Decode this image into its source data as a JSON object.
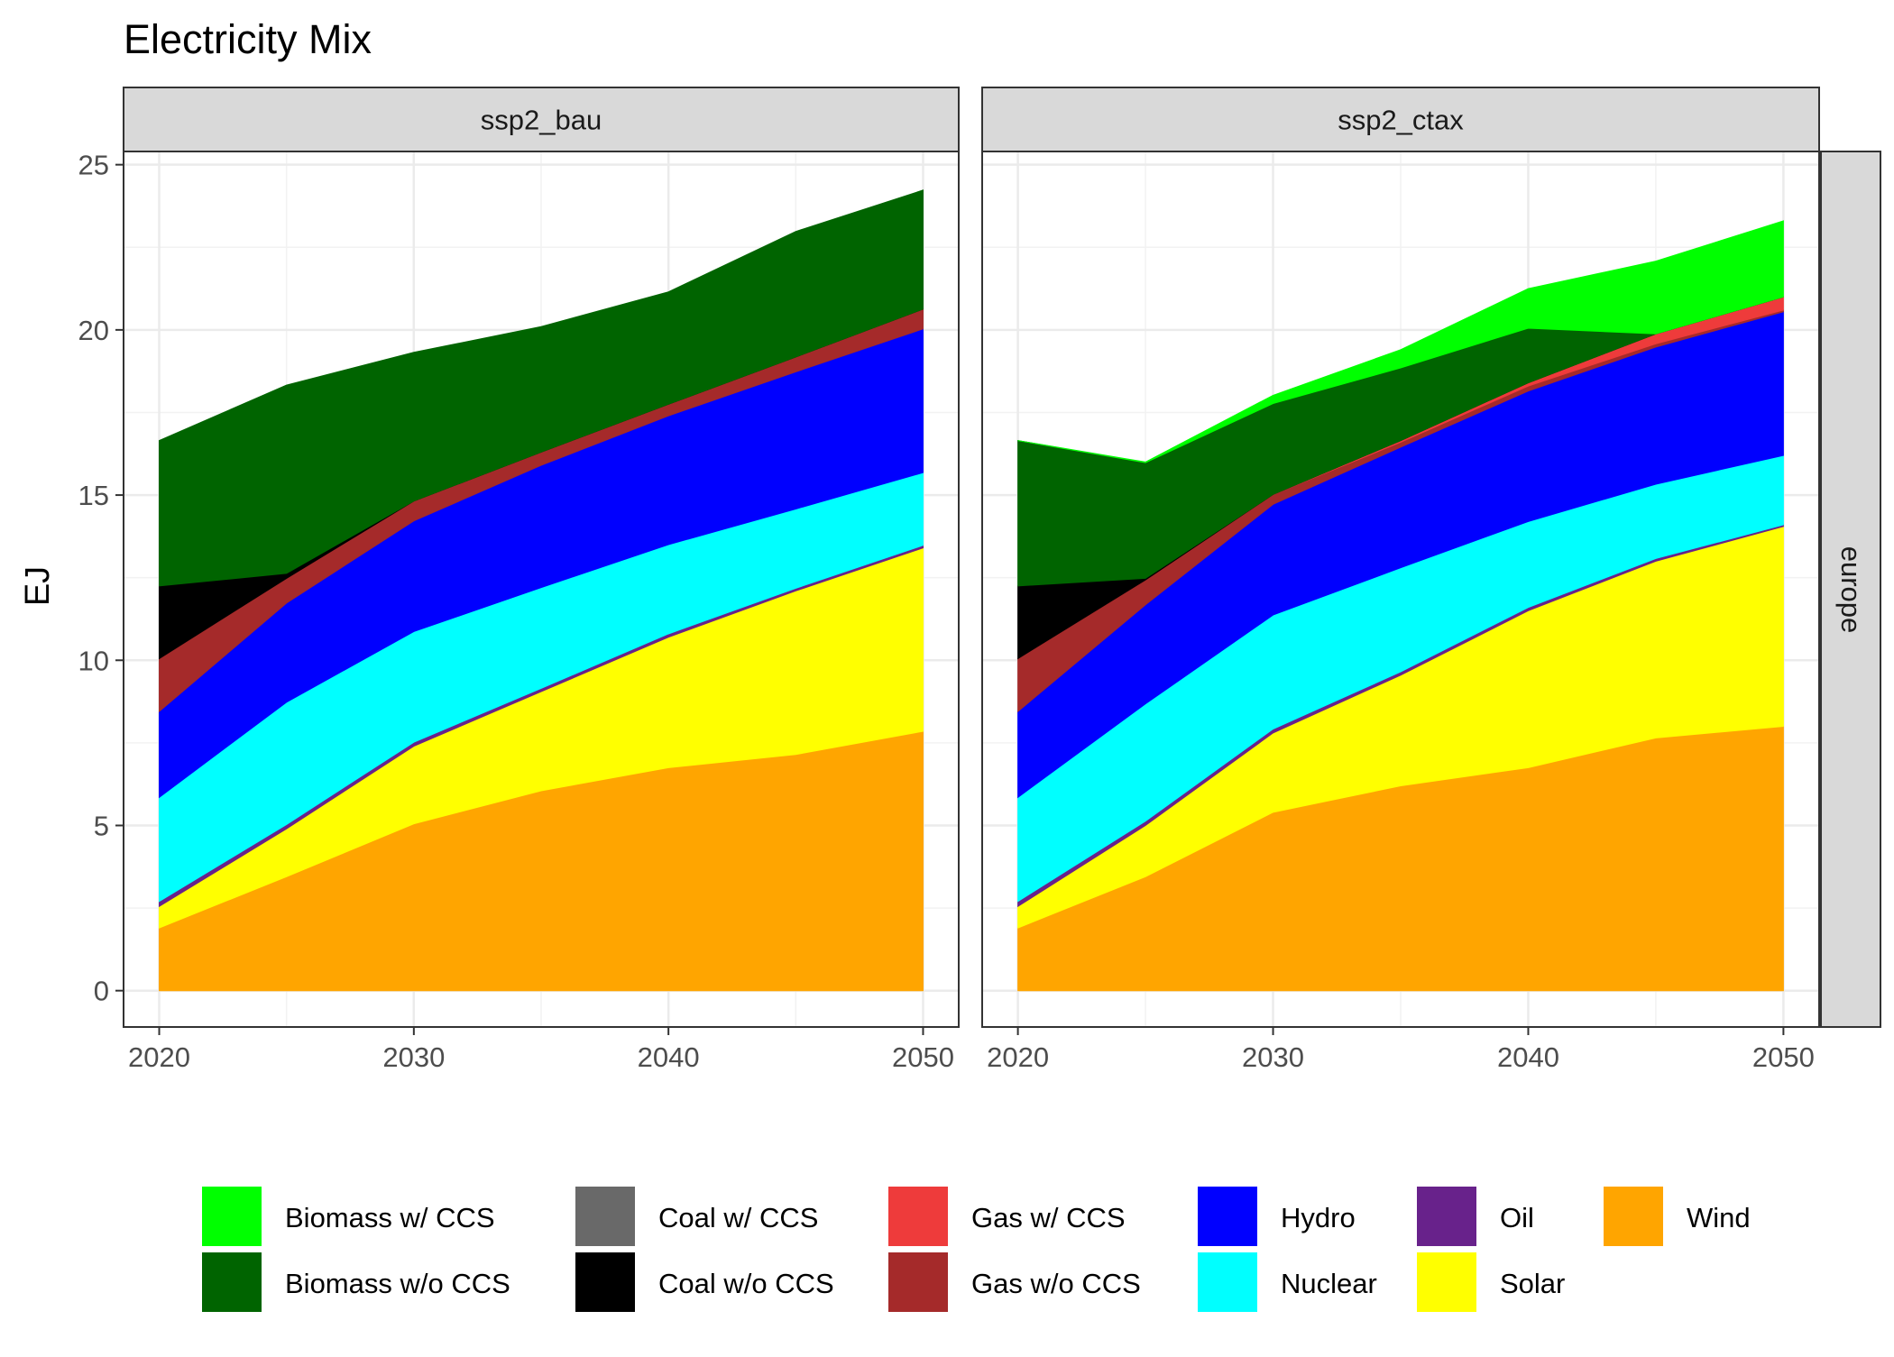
{
  "title": "Electricity Mix",
  "chart_data": {
    "type": "area",
    "stacked": true,
    "title": "Electricity Mix",
    "ylabel": "EJ",
    "xlabel": "",
    "ylim": [
      -1.1,
      25.4
    ],
    "xlim": [
      2018.6,
      2051.4
    ],
    "yticks": [
      0,
      5,
      10,
      15,
      20,
      25
    ],
    "xticks": [
      2020,
      2030,
      2040,
      2050
    ],
    "grid": true,
    "row_strip": "europe",
    "legend_position": "bottom",
    "x": [
      2020,
      2025,
      2030,
      2035,
      2040,
      2045,
      2050
    ],
    "stack_order_bottom_to_top": [
      "Wind",
      "Solar",
      "Oil",
      "Nuclear",
      "Hydro",
      "Gas w/o CCS",
      "Gas w/ CCS",
      "Coal w/o CCS",
      "Coal w/ CCS",
      "Biomass w/o CCS",
      "Biomass w/ CCS"
    ],
    "legend": [
      {
        "name": "Biomass w/ CCS",
        "color": "#00FF00"
      },
      {
        "name": "Biomass w/o CCS",
        "color": "#006400"
      },
      {
        "name": "Coal w/ CCS",
        "color": "#696969"
      },
      {
        "name": "Coal w/o CCS",
        "color": "#000000"
      },
      {
        "name": "Gas w/ CCS",
        "color": "#EE3B3B"
      },
      {
        "name": "Gas w/o CCS",
        "color": "#A52A2A"
      },
      {
        "name": "Hydro",
        "color": "#0000FF"
      },
      {
        "name": "Nuclear",
        "color": "#00FFFF"
      },
      {
        "name": "Oil",
        "color": "#68228B"
      },
      {
        "name": "Solar",
        "color": "#FFFF00"
      },
      {
        "name": "Wind",
        "color": "#FFA500"
      }
    ],
    "panels": [
      {
        "label": "ssp2_bau",
        "series": [
          {
            "name": "Wind",
            "values": [
              1.9,
              3.45,
              5.05,
              6.05,
              6.75,
              7.15,
              7.85
            ]
          },
          {
            "name": "Solar",
            "values": [
              0.65,
              1.45,
              2.35,
              3.0,
              3.95,
              4.95,
              5.55
            ]
          },
          {
            "name": "Oil",
            "values": [
              0.15,
              0.13,
              0.12,
              0.1,
              0.1,
              0.08,
              0.08
            ]
          },
          {
            "name": "Nuclear",
            "values": [
              3.15,
              3.7,
              3.35,
              3.05,
              2.7,
              2.4,
              2.2
            ]
          },
          {
            "name": "Hydro",
            "values": [
              2.6,
              3.0,
              3.35,
              3.7,
              3.9,
              4.15,
              4.35
            ]
          },
          {
            "name": "Gas w/o CCS",
            "values": [
              1.6,
              0.75,
              0.6,
              0.4,
              0.35,
              0.45,
              0.6
            ]
          },
          {
            "name": "Gas w/ CCS",
            "values": [
              0,
              0,
              0,
              0,
              0,
              0,
              0
            ]
          },
          {
            "name": "Coal w/o CCS",
            "values": [
              2.2,
              0.15,
              0,
              0,
              0,
              0,
              0
            ]
          },
          {
            "name": "Coal w/ CCS",
            "values": [
              0,
              0,
              0,
              0,
              0,
              0,
              0
            ]
          },
          {
            "name": "Biomass w/o CCS",
            "values": [
              4.4,
              5.7,
              4.5,
              3.8,
              3.4,
              3.8,
              3.6
            ]
          },
          {
            "name": "Biomass w/ CCS",
            "values": [
              0,
              0,
              0,
              0,
              0,
              0,
              0
            ]
          }
        ]
      },
      {
        "label": "ssp2_ctax",
        "series": [
          {
            "name": "Wind",
            "values": [
              1.9,
              3.45,
              5.4,
              6.2,
              6.75,
              7.65,
              8.0
            ]
          },
          {
            "name": "Solar",
            "values": [
              0.65,
              1.55,
              2.4,
              3.35,
              4.75,
              5.35,
              6.05
            ]
          },
          {
            "name": "Oil",
            "values": [
              0.15,
              0.13,
              0.12,
              0.1,
              0.1,
              0.08,
              0.05
            ]
          },
          {
            "name": "Nuclear",
            "values": [
              3.15,
              3.55,
              3.45,
              3.15,
              2.6,
              2.25,
              2.1
            ]
          },
          {
            "name": "Hydro",
            "values": [
              2.6,
              3.0,
              3.35,
              3.65,
              3.95,
              4.15,
              4.35
            ]
          },
          {
            "name": "Gas w/o CCS",
            "values": [
              1.6,
              0.75,
              0.3,
              0.15,
              0.15,
              0.1,
              0.05
            ]
          },
          {
            "name": "Gas w/ CCS",
            "values": [
              0,
              0,
              0,
              0.05,
              0.1,
              0.3,
              0.4
            ]
          },
          {
            "name": "Coal w/o CCS",
            "values": [
              2.2,
              0.05,
              0,
              0,
              0,
              0,
              0
            ]
          },
          {
            "name": "Coal w/ CCS",
            "values": [
              0,
              0,
              0,
              0,
              0,
              0,
              0
            ]
          },
          {
            "name": "Biomass w/o CCS",
            "values": [
              4.4,
              3.5,
              2.75,
              2.2,
              1.65,
              0,
              0
            ]
          },
          {
            "name": "Biomass w/ CCS",
            "values": [
              0,
              0.02,
              0.25,
              0.55,
              1.2,
              2.2,
              2.3
            ]
          }
        ]
      }
    ]
  }
}
